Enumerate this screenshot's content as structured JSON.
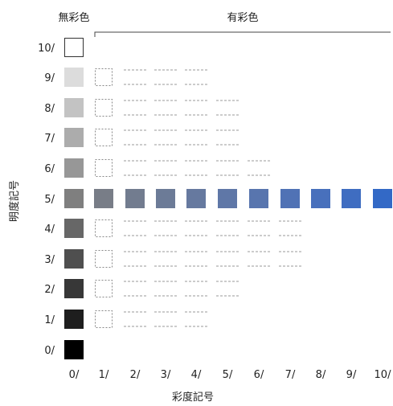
{
  "headers": {
    "achromatic": "無彩色",
    "chromatic": "有彩色"
  },
  "axes": {
    "value_label": "明度記号",
    "chroma_label": "彩度記号"
  },
  "value_ticks": [
    "10/",
    "9/",
    "8/",
    "7/",
    "6/",
    "5/",
    "4/",
    "3/",
    "2/",
    "1/",
    "0/"
  ],
  "chroma_ticks": [
    "0/",
    "1/",
    "2/",
    "3/",
    "4/",
    "5/",
    "6/",
    "7/",
    "8/",
    "9/",
    "10/"
  ],
  "colors": {
    "gray_by_value": {
      "10": "#ffffff",
      "9": "#dcdcdc",
      "8": "#c3c3c3",
      "7": "#acacac",
      "6": "#979797",
      "5": "#7f7f7f",
      "4": "#676767",
      "3": "#4f4f4f",
      "2": "#373737",
      "1": "#1e1e1e",
      "0": "#000000"
    },
    "value5_by_chroma": [
      "#7f7f7f",
      "#787d87",
      "#727c8f",
      "#6c7b97",
      "#66799f",
      "#5f77a7",
      "#5875ae",
      "#5072b5",
      "#4870bc",
      "#3f6dc1",
      "#3369c6"
    ],
    "dash": "#999999",
    "placeholder_border": "#888888",
    "bracket": "#444444"
  },
  "grid": {
    "placeholder_rows": [
      9,
      8,
      7,
      6,
      4,
      3,
      2,
      1
    ],
    "dash_extent_by_value": {
      "9": 4,
      "8": 5,
      "7": 5,
      "6": 6,
      "4": 7,
      "3": 7,
      "2": 5,
      "1": 4
    }
  }
}
